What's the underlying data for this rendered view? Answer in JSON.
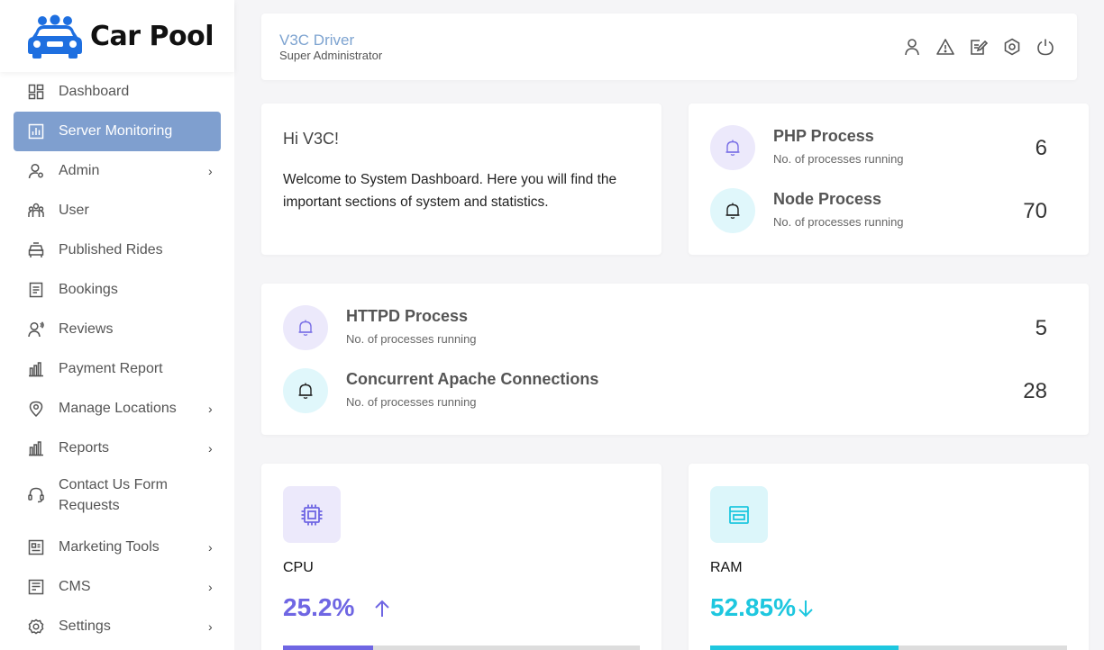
{
  "brand": {
    "name": "Car Pool"
  },
  "colors": {
    "accent_purple": "#6f66e3",
    "accent_cyan": "#1ec7df",
    "active_nav": "#7f9fcf",
    "user_name": "#7da3d0"
  },
  "sidebar": {
    "items": [
      {
        "label": "Dashboard",
        "icon": "dashboard-icon",
        "active": false,
        "submenu": false
      },
      {
        "label": "Server Monitoring",
        "icon": "server-monitoring-icon",
        "active": true,
        "submenu": false
      },
      {
        "label": "Admin",
        "icon": "admin-icon",
        "active": false,
        "submenu": true
      },
      {
        "label": "User",
        "icon": "users-icon",
        "active": false,
        "submenu": false
      },
      {
        "label": "Published Rides",
        "icon": "car-icon",
        "active": false,
        "submenu": false
      },
      {
        "label": "Bookings",
        "icon": "document-icon",
        "active": false,
        "submenu": false
      },
      {
        "label": "Reviews",
        "icon": "review-icon",
        "active": false,
        "submenu": false
      },
      {
        "label": "Payment Report",
        "icon": "bar-chart-icon",
        "active": false,
        "submenu": false
      },
      {
        "label": "Manage Locations",
        "icon": "location-pin-icon",
        "active": false,
        "submenu": true
      },
      {
        "label": "Reports",
        "icon": "bar-chart-icon",
        "active": false,
        "submenu": true
      },
      {
        "label": "Contact Us Form Requests",
        "icon": "headset-icon",
        "active": false,
        "submenu": false
      },
      {
        "label": "Marketing Tools",
        "icon": "newsletter-icon",
        "active": false,
        "submenu": true
      },
      {
        "label": "CMS",
        "icon": "cms-icon",
        "active": false,
        "submenu": true
      },
      {
        "label": "Settings",
        "icon": "gear-icon",
        "active": false,
        "submenu": true
      }
    ]
  },
  "header": {
    "user_name": "V3C Driver",
    "user_role": "Super Administrator",
    "icons": [
      "user-icon",
      "warning-icon",
      "edit-icon",
      "settings-icon",
      "power-icon"
    ]
  },
  "welcome": {
    "greeting": "Hi V3C!",
    "message": "Welcome to System Dashboard. Here you will find the important sections of system and statistics."
  },
  "processes": [
    {
      "title": "PHP Process",
      "subtitle": "No. of processes running",
      "value": "6",
      "icon": "bell-icon"
    },
    {
      "title": "Node Process",
      "subtitle": "No. of processes running",
      "value": "70",
      "icon": "bell-icon"
    },
    {
      "title": "HTTPD Process",
      "subtitle": "No. of processes running",
      "value": "5",
      "icon": "bell-icon"
    },
    {
      "title": "Concurrent Apache Connections",
      "subtitle": "No. of processes running",
      "value": "28",
      "icon": "bell-icon"
    }
  ],
  "stats": {
    "cpu": {
      "label": "CPU",
      "value": "25.2%",
      "percent": 25.2,
      "trend": "up",
      "icon": "cpu-icon"
    },
    "ram": {
      "label": "RAM",
      "value": "52.85%",
      "percent": 52.85,
      "trend": "down",
      "icon": "ram-icon"
    }
  }
}
